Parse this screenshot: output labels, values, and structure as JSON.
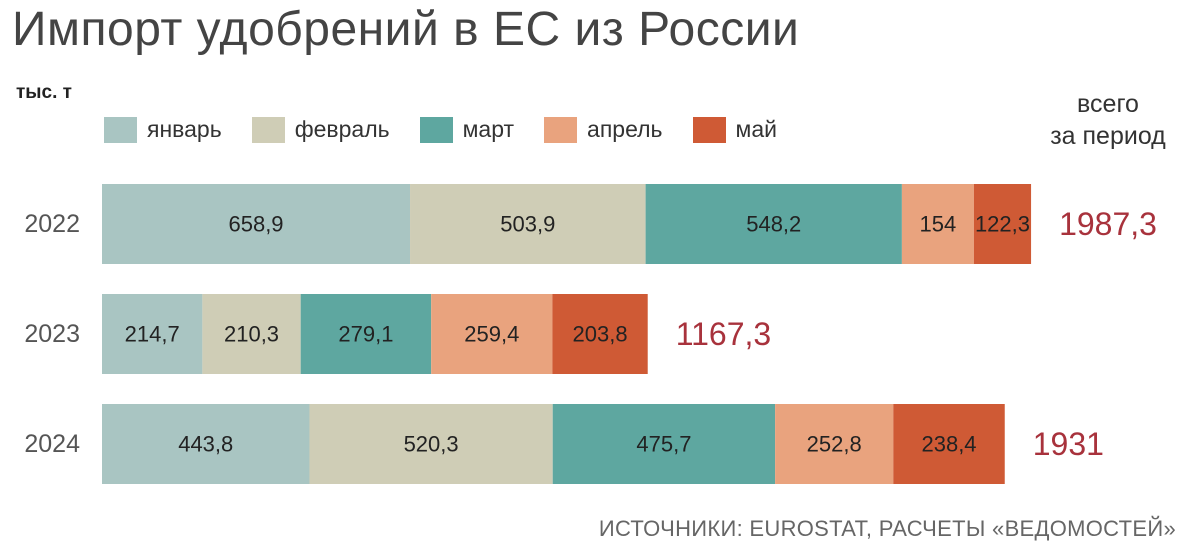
{
  "chart_data": {
    "type": "bar",
    "orientation": "horizontal",
    "stacked": true,
    "title": "Импорт удобрений в ЕС из России",
    "unit": "тыс. т",
    "categories": [
      "2022",
      "2023",
      "2024"
    ],
    "series": [
      {
        "name": "январь",
        "color": "#a9c5c2",
        "values": [
          658.9,
          214.7,
          443.8
        ],
        "labels": [
          "658,9",
          "214,7",
          "443,8"
        ]
      },
      {
        "name": "февраль",
        "color": "#cfcdb6",
        "values": [
          503.9,
          210.3,
          520.3
        ],
        "labels": [
          "503,9",
          "210,3",
          "520,3"
        ]
      },
      {
        "name": "март",
        "color": "#5ea7a0",
        "values": [
          548.2,
          279.1,
          475.7
        ],
        "labels": [
          "548,2",
          "279,1",
          "475,7"
        ]
      },
      {
        "name": "апрель",
        "color": "#e9a37e",
        "values": [
          154,
          259.4,
          252.8
        ],
        "labels": [
          "154",
          "259,4",
          "252,8"
        ]
      },
      {
        "name": "май",
        "color": "#cf5a35",
        "values": [
          122.3,
          203.8,
          238.4
        ],
        "labels": [
          "122,3",
          "203,8",
          "238,4"
        ]
      }
    ],
    "totals_header": [
      "всего",
      "за период"
    ],
    "totals": [
      1987.3,
      1167.3,
      1931
    ],
    "totals_labels": [
      "1987,3",
      "1167,3",
      "1931"
    ],
    "totals_color": "#a8323c",
    "xlim": [
      0,
      2000
    ],
    "grid": false,
    "legend": "top-left"
  },
  "source": "ИСТОЧНИКИ: EUROSTAT, РАСЧЕТЫ «ВЕДОМОСТЕЙ»"
}
